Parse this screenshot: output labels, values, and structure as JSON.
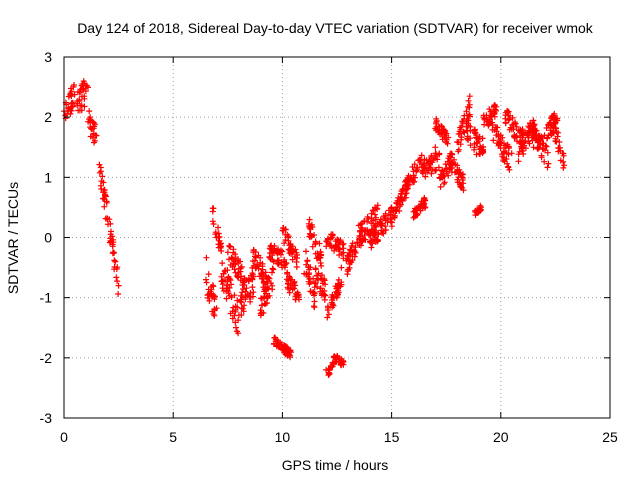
{
  "chart_data": {
    "type": "scatter",
    "title": "Day 124 of 2018, Sidereal Day-to-day VTEC variation (SDTVAR) for receiver wmok",
    "xlabel": "GPS time / hours",
    "ylabel": "SDTVAR / TECUs",
    "xlim": [
      0,
      25
    ],
    "ylim": [
      -3,
      3
    ],
    "xticks": [
      0,
      5,
      10,
      15,
      20,
      25
    ],
    "yticks": [
      -3,
      -2,
      -1,
      0,
      1,
      2,
      3
    ],
    "xtick_labels": [
      "0",
      "5",
      "10",
      "15",
      "20",
      "25"
    ],
    "ytick_labels": [
      "-3",
      "-2",
      "-1",
      "0",
      "1",
      "2",
      "3"
    ],
    "grid": true,
    "marker": "+",
    "series_color": "#ff0000",
    "trend_points": [
      {
        "x": 0.0,
        "y": 2.1
      },
      {
        "x": 0.3,
        "y": 2.4
      },
      {
        "x": 0.6,
        "y": 2.2
      },
      {
        "x": 0.9,
        "y": 2.6
      },
      {
        "x": 1.2,
        "y": 2.0
      },
      {
        "x": 1.45,
        "y": 1.7
      },
      {
        "x": 1.7,
        "y": 1.1
      },
      {
        "x": 1.95,
        "y": 0.6
      },
      {
        "x": 2.15,
        "y": 0.1
      },
      {
        "x": 2.35,
        "y": -0.4
      },
      {
        "x": 2.5,
        "y": -0.8
      },
      {
        "x": 6.5,
        "y": -0.7
      },
      {
        "x": 6.9,
        "y": -1.2
      },
      {
        "x": 7.3,
        "y": -0.6
      },
      {
        "x": 7.8,
        "y": -1.3
      },
      {
        "x": 8.3,
        "y": -0.9
      },
      {
        "x": 8.8,
        "y": -0.5
      },
      {
        "x": 9.2,
        "y": -1.1
      },
      {
        "x": 9.6,
        "y": -0.4
      },
      {
        "x": 9.9,
        "y": -1.75
      },
      {
        "x": 10.2,
        "y": -1.85
      },
      {
        "x": 10.6,
        "y": -0.2
      },
      {
        "x": 11.0,
        "y": -0.6
      },
      {
        "x": 11.3,
        "y": -0.9
      },
      {
        "x": 11.7,
        "y": -0.1
      },
      {
        "x": 12.0,
        "y": -2.2
      },
      {
        "x": 12.4,
        "y": -2.0
      },
      {
        "x": 12.7,
        "y": -0.5
      },
      {
        "x": 13.1,
        "y": -0.2
      },
      {
        "x": 13.5,
        "y": 0.2
      },
      {
        "x": 14.0,
        "y": 0.1
      },
      {
        "x": 14.5,
        "y": 0.3
      },
      {
        "x": 15.0,
        "y": 0.5
      },
      {
        "x": 15.5,
        "y": 0.8
      },
      {
        "x": 16.0,
        "y": 1.1
      },
      {
        "x": 16.5,
        "y": 1.3
      },
      {
        "x": 17.0,
        "y": 1.5
      },
      {
        "x": 17.5,
        "y": 1.7
      },
      {
        "x": 18.0,
        "y": 1.2
      },
      {
        "x": 18.5,
        "y": 1.9
      },
      {
        "x": 19.0,
        "y": 1.6
      },
      {
        "x": 19.5,
        "y": 2.0
      },
      {
        "x": 20.0,
        "y": 1.7
      },
      {
        "x": 20.5,
        "y": 1.4
      },
      {
        "x": 21.0,
        "y": 1.8
      },
      {
        "x": 21.5,
        "y": 1.5
      },
      {
        "x": 22.0,
        "y": 1.7
      },
      {
        "x": 22.5,
        "y": 1.6
      },
      {
        "x": 22.9,
        "y": 1.2
      }
    ],
    "clusters": [
      {
        "x_start": 0.0,
        "x_end": 0.5,
        "y_start": 2.0,
        "y_end": 2.4,
        "spread": 0.45
      },
      {
        "x_start": 0.6,
        "x_end": 1.1,
        "y_start": 2.2,
        "y_end": 2.5,
        "spread": 0.45
      },
      {
        "x_start": 1.1,
        "x_end": 1.5,
        "y_start": 2.0,
        "y_end": 1.6,
        "spread": 0.4
      },
      {
        "x_start": 1.6,
        "x_end": 2.5,
        "y_start": 1.2,
        "y_end": -0.8,
        "spread": 0.4
      },
      {
        "x_start": 6.5,
        "x_end": 7.0,
        "y_start": -0.6,
        "y_end": -1.3,
        "spread": 0.6
      },
      {
        "x_start": 6.8,
        "x_end": 7.2,
        "y_start": 0.4,
        "y_end": -0.2,
        "spread": 0.3
      },
      {
        "x_start": 7.2,
        "x_end": 8.0,
        "y_start": -0.5,
        "y_end": -1.4,
        "spread": 0.6
      },
      {
        "x_start": 7.5,
        "x_end": 8.3,
        "y_start": -0.2,
        "y_end": -0.7,
        "spread": 0.35
      },
      {
        "x_start": 8.0,
        "x_end": 8.7,
        "y_start": -1.2,
        "y_end": -0.7,
        "spread": 0.5
      },
      {
        "x_start": 8.6,
        "x_end": 9.3,
        "y_start": -0.2,
        "y_end": -0.8,
        "spread": 0.4
      },
      {
        "x_start": 9.0,
        "x_end": 9.6,
        "y_start": -1.2,
        "y_end": -0.6,
        "spread": 0.4
      },
      {
        "x_start": 9.4,
        "x_end": 10.2,
        "y_start": -0.2,
        "y_end": -0.4,
        "spread": 0.3
      },
      {
        "x_start": 9.6,
        "x_end": 10.4,
        "y_start": -1.7,
        "y_end": -1.95,
        "spread": 0.15
      },
      {
        "x_start": 10.0,
        "x_end": 10.7,
        "y_start": 0.1,
        "y_end": -0.4,
        "spread": 0.3
      },
      {
        "x_start": 10.2,
        "x_end": 10.8,
        "y_start": -0.7,
        "y_end": -1.0,
        "spread": 0.3
      },
      {
        "x_start": 11.0,
        "x_end": 11.5,
        "y_start": -0.3,
        "y_end": -1.0,
        "spread": 0.5
      },
      {
        "x_start": 11.2,
        "x_end": 11.8,
        "y_start": 0.2,
        "y_end": -0.4,
        "spread": 0.35
      },
      {
        "x_start": 11.5,
        "x_end": 12.0,
        "y_start": -0.6,
        "y_end": -0.9,
        "spread": 0.35
      },
      {
        "x_start": 12.1,
        "x_end": 12.4,
        "y_start": -2.25,
        "y_end": -2.0,
        "spread": 0.12
      },
      {
        "x_start": 12.4,
        "x_end": 12.8,
        "y_start": -2.0,
        "y_end": -2.1,
        "spread": 0.12
      },
      {
        "x_start": 12.0,
        "x_end": 12.7,
        "y_start": -1.3,
        "y_end": -0.7,
        "spread": 0.25
      },
      {
        "x_start": 12.0,
        "x_end": 12.8,
        "y_start": 0.0,
        "y_end": -0.2,
        "spread": 0.3
      },
      {
        "x_start": 12.9,
        "x_end": 13.6,
        "y_start": -0.5,
        "y_end": 0.1,
        "spread": 0.35
      },
      {
        "x_start": 13.5,
        "x_end": 14.4,
        "y_start": 0.0,
        "y_end": 0.4,
        "spread": 0.35
      },
      {
        "x_start": 14.0,
        "x_end": 15.0,
        "y_start": -0.1,
        "y_end": 0.4,
        "spread": 0.3
      },
      {
        "x_start": 15.0,
        "x_end": 15.8,
        "y_start": 0.3,
        "y_end": 0.9,
        "spread": 0.3
      },
      {
        "x_start": 15.6,
        "x_end": 16.4,
        "y_start": 0.8,
        "y_end": 1.3,
        "spread": 0.3
      },
      {
        "x_start": 16.0,
        "x_end": 16.6,
        "y_start": 0.4,
        "y_end": 0.6,
        "spread": 0.2
      },
      {
        "x_start": 16.4,
        "x_end": 17.2,
        "y_start": 1.1,
        "y_end": 1.3,
        "spread": 0.3
      },
      {
        "x_start": 17.0,
        "x_end": 17.6,
        "y_start": 1.9,
        "y_end": 1.6,
        "spread": 0.2
      },
      {
        "x_start": 17.2,
        "x_end": 17.8,
        "y_start": 0.9,
        "y_end": 1.3,
        "spread": 0.3
      },
      {
        "x_start": 17.6,
        "x_end": 18.3,
        "y_start": 1.3,
        "y_end": 0.9,
        "spread": 0.3
      },
      {
        "x_start": 18.0,
        "x_end": 18.6,
        "y_start": 1.5,
        "y_end": 2.2,
        "spread": 0.35
      },
      {
        "x_start": 18.4,
        "x_end": 19.2,
        "y_start": 1.7,
        "y_end": 1.5,
        "spread": 0.4
      },
      {
        "x_start": 18.8,
        "x_end": 19.1,
        "y_start": 0.4,
        "y_end": 0.5,
        "spread": 0.1
      },
      {
        "x_start": 19.2,
        "x_end": 19.8,
        "y_start": 1.9,
        "y_end": 2.1,
        "spread": 0.3
      },
      {
        "x_start": 19.6,
        "x_end": 20.4,
        "y_start": 1.8,
        "y_end": 1.3,
        "spread": 0.4
      },
      {
        "x_start": 20.2,
        "x_end": 21.0,
        "y_start": 2.0,
        "y_end": 1.6,
        "spread": 0.35
      },
      {
        "x_start": 20.8,
        "x_end": 21.6,
        "y_start": 1.4,
        "y_end": 1.9,
        "spread": 0.35
      },
      {
        "x_start": 21.4,
        "x_end": 22.2,
        "y_start": 1.8,
        "y_end": 1.3,
        "spread": 0.35
      },
      {
        "x_start": 22.0,
        "x_end": 22.6,
        "y_start": 1.7,
        "y_end": 2.0,
        "spread": 0.3
      },
      {
        "x_start": 22.4,
        "x_end": 22.9,
        "y_start": 1.9,
        "y_end": 1.2,
        "spread": 0.35
      }
    ]
  }
}
